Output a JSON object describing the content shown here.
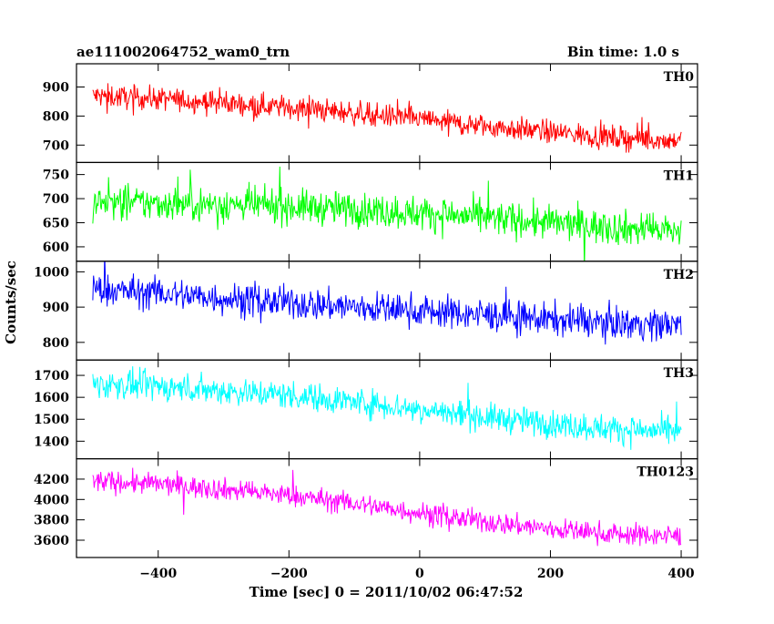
{
  "header": {
    "left": "ae111002064752_wam0_trn",
    "right": "Bin time: 1.0 s"
  },
  "chart_data": {
    "type": "line",
    "title": "ae111002064752_wam0_trn",
    "subtitle": "Bin time: 1.0 s",
    "xlabel": "Time [sec] 0 = 2011/10/02 06:47:52",
    "ylabel": "Counts/sec",
    "xlim": [
      -525,
      425
    ],
    "x_ticks": [
      -400,
      -200,
      0,
      200,
      400
    ],
    "x_tick_labels": [
      "−400",
      "−200",
      "0",
      "200",
      "400"
    ],
    "bin_seconds": 1.0,
    "x_range": [
      -500,
      400
    ],
    "grid": false,
    "series": [
      {
        "name": "TH0",
        "color": "#ff0000",
        "ylim": [
          640,
          980
        ],
        "y_ticks": [
          700,
          800,
          900
        ],
        "trend_x": [
          -500,
          -400,
          -300,
          -200,
          -100,
          0,
          100,
          200,
          300,
          400
        ],
        "trend_y": [
          870,
          860,
          845,
          830,
          810,
          790,
          765,
          745,
          725,
          715
        ],
        "noise": 28
      },
      {
        "name": "TH1",
        "color": "#00ff00",
        "ylim": [
          570,
          775
        ],
        "y_ticks": [
          600,
          650,
          700,
          750
        ],
        "trend_x": [
          -500,
          -400,
          -300,
          -200,
          -100,
          0,
          100,
          200,
          300,
          400
        ],
        "trend_y": [
          692,
          690,
          688,
          684,
          678,
          670,
          660,
          650,
          640,
          632
        ],
        "noise": 25
      },
      {
        "name": "TH2",
        "color": "#0000ff",
        "ylim": [
          750,
          1030
        ],
        "y_ticks": [
          800,
          900,
          1000
        ],
        "trend_x": [
          -500,
          -400,
          -300,
          -200,
          -100,
          0,
          100,
          200,
          300,
          400
        ],
        "trend_y": [
          950,
          940,
          925,
          912,
          900,
          890,
          878,
          865,
          855,
          850
        ],
        "noise": 32
      },
      {
        "name": "TH3",
        "color": "#00ffff",
        "ylim": [
          1320,
          1770
        ],
        "y_ticks": [
          1400,
          1500,
          1600,
          1700
        ],
        "trend_x": [
          -500,
          -400,
          -300,
          -200,
          -100,
          0,
          100,
          200,
          300,
          400
        ],
        "trend_y": [
          1660,
          1650,
          1630,
          1610,
          1580,
          1545,
          1510,
          1480,
          1455,
          1440
        ],
        "noise": 45
      },
      {
        "name": "TH0123",
        "color": "#ff00ff",
        "ylim": [
          3430,
          4400
        ],
        "y_ticks": [
          3600,
          3800,
          4000,
          4200
        ],
        "trend_x": [
          -500,
          -400,
          -300,
          -200,
          -100,
          0,
          100,
          200,
          300,
          400
        ],
        "trend_y": [
          4180,
          4150,
          4100,
          4040,
          3960,
          3870,
          3780,
          3710,
          3660,
          3640
        ],
        "noise": 75
      }
    ]
  }
}
